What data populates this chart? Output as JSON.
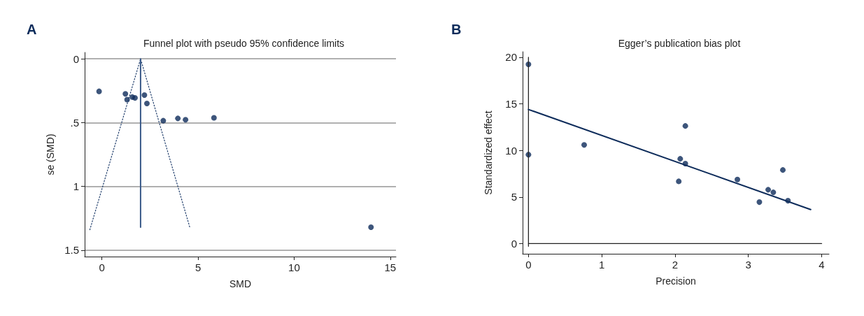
{
  "chart_data": [
    {
      "type": "scatter",
      "title": "Funnel plot with pseudo 95% confidence limits",
      "xlabel": "SMD",
      "ylabel": "se (SMD)",
      "annotations": [
        "A"
      ],
      "xlim": [
        -0.9,
        15.3
      ],
      "xticks": [
        0,
        5,
        10,
        15
      ],
      "ylim": [
        1.55,
        -0.05
      ],
      "yticks": [
        0,
        {
          "value": 0.5,
          "label": ".5"
        },
        1,
        1.5
      ],
      "grid": "y",
      "series": [
        {
          "type": "line",
          "color": "#1f3d6b",
          "line_style": "dotted",
          "x": [
            -0.63,
            2.01,
            4.57
          ],
          "values": [
            1.34,
            0,
            1.32
          ]
        },
        {
          "type": "line",
          "color": "#3a5a8a",
          "line_style": "solid",
          "x": [
            2.01,
            2.01
          ],
          "values": [
            0,
            1.32
          ]
        },
        {
          "marker": "circle",
          "color": "#0d2b5a",
          "x": [
            -0.15,
            1.22,
            1.31,
            1.58,
            1.72,
            2.21,
            2.34,
            3.19,
            3.95,
            4.35,
            5.83,
            14.0
          ],
          "values": [
            0.255,
            0.275,
            0.32,
            0.3,
            0.306,
            0.284,
            0.35,
            0.485,
            0.467,
            0.477,
            0.462,
            1.32
          ]
        }
      ]
    },
    {
      "type": "scatter",
      "title": "Egger’s publication bias plot",
      "xlabel": "Precision",
      "ylabel": "Standardized effect",
      "annotations": [
        "B"
      ],
      "xlim": [
        -0.08,
        4.1
      ],
      "xticks": [
        0,
        1,
        2,
        3,
        4
      ],
      "ylim": [
        -1.1,
        20.6
      ],
      "yticks": [
        0,
        5,
        10,
        15,
        20
      ],
      "grid": false,
      "series": [
        {
          "type": "line",
          "color": "#222222",
          "line_style": "solid",
          "x": [
            0,
            0
          ],
          "values": [
            -0.3,
            20
          ]
        },
        {
          "type": "line",
          "color": "#222222",
          "line_style": "solid",
          "x": [
            0,
            4.0
          ],
          "values": [
            0,
            0
          ]
        },
        {
          "marker": "circle",
          "color": "#0d2b5a",
          "x": [
            0,
            0,
            0.76,
            2.14,
            2.07,
            2.14,
            2.05,
            2.85,
            3.15,
            3.27,
            3.34,
            3.47,
            3.54
          ],
          "values": [
            19.25,
            9.55,
            10.6,
            12.63,
            9.1,
            8.58,
            6.68,
            6.88,
            4.45,
            5.78,
            5.5,
            7.9,
            4.6
          ]
        },
        {
          "type": "line",
          "color": "#0d2b5a",
          "line_style": "solid",
          "x": [
            0,
            3.85
          ],
          "values": [
            14.4,
            3.65
          ]
        }
      ]
    }
  ]
}
